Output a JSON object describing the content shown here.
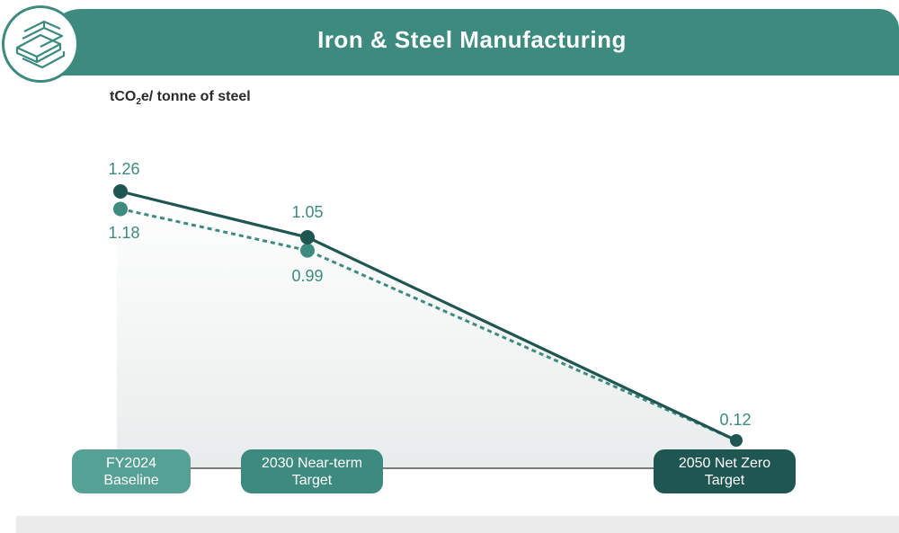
{
  "header": {
    "title": "Iron & Steel Manufacturing",
    "icon": "steel-beams-icon",
    "color": "#3d8a7f"
  },
  "ylabel": {
    "prefix": "tCO",
    "sub": "2",
    "suffix": "e/ tonne of steel"
  },
  "chart_data": {
    "type": "line",
    "categories": [
      "FY2024 Baseline",
      "2030 Near-term Target",
      "2050 Net Zero Target"
    ],
    "x": [
      2024,
      2030,
      2050
    ],
    "series": [
      {
        "values": [
          1.26,
          1.05,
          0.12
        ],
        "style": "solid",
        "color": "#1f5652"
      },
      {
        "values": [
          1.18,
          0.99,
          0.12
        ],
        "style": "dashed",
        "color": "#3d8a7f"
      }
    ],
    "labels": {
      "upper": [
        "1.26",
        "1.05"
      ],
      "lower": [
        "1.18",
        "0.99"
      ],
      "end": "0.12"
    },
    "ylim": [
      0,
      1.4
    ]
  },
  "pills": [
    {
      "line1": "FY2024",
      "line2": "Baseline",
      "color": "#56a196"
    },
    {
      "line1": "2030 Near-term",
      "line2": "Target",
      "color": "#3d8a7f"
    },
    {
      "line1": "2050 Net Zero",
      "line2": "Target",
      "color": "#1f5652"
    }
  ]
}
